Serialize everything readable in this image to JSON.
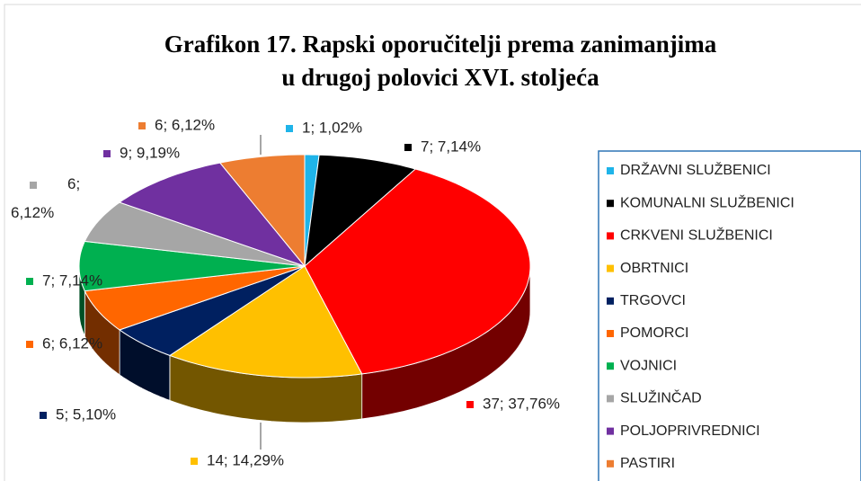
{
  "chart_data": {
    "type": "pie3d",
    "title": [
      "Grafikon 17. Rapski oporučitelji prema zanimanjima",
      "u drugoj polovici XVI. stoljeća"
    ],
    "categories": [
      "DRŽAVNI SLUŽBENICI",
      "KOMUNALNI SLUŽBENICI",
      "CRKVENI SLUŽBENICI",
      "OBRTNICI",
      "TRGOVCI",
      "POMORCI",
      "VOJNICI",
      "SLUŽINČAD",
      "POLJOPRIVREDNICI",
      "PASTIRI"
    ],
    "values": [
      1,
      7,
      37,
      14,
      5,
      6,
      7,
      6,
      9,
      6
    ],
    "value_labels": [
      "1; 1,02%",
      "7; 7,14%",
      "37; 37,76%",
      "14; 14,29%",
      "5; 5,10%",
      "6; 6,12%",
      "7; 7,14%",
      "6; 6,12%",
      "9; 9,19%",
      "6; 6,12%"
    ],
    "colors": [
      "#1fb4e9",
      "#000000",
      "#ff0000",
      "#ffc000",
      "#002060",
      "#ff6600",
      "#00b050",
      "#a6a6a6",
      "#7030a0",
      "#ed7d31"
    ],
    "legend": "right"
  }
}
